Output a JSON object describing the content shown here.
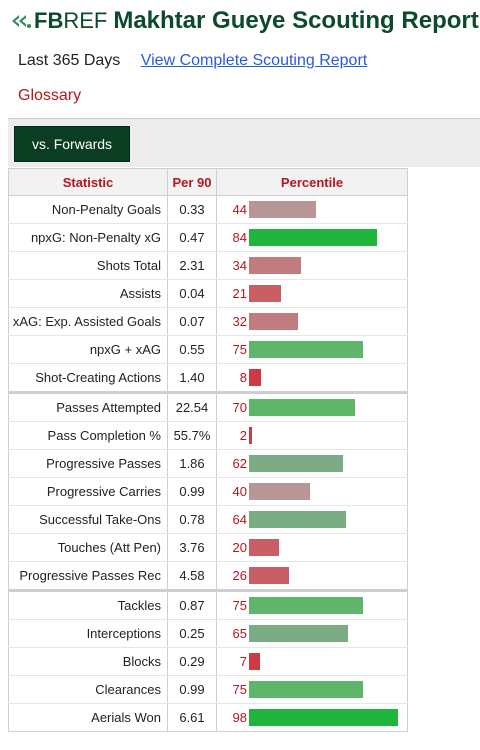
{
  "header": {
    "logo_fb": "FB",
    "logo_ref": "REF",
    "title": "Makhtar Gueye Scouting Report"
  },
  "period": {
    "label": "Last 365 Days",
    "link": "View Complete Scouting Report"
  },
  "glossary": "Glossary",
  "tab": {
    "label": "vs. Forwards"
  },
  "table": {
    "headers": {
      "statistic": "Statistic",
      "per90": "Per 90",
      "percentile": "Percentile"
    },
    "rows": [
      {
        "stat": "Non-Penalty Goals",
        "per90": "0.33",
        "percentile": "44",
        "group_start": false
      },
      {
        "stat": "npxG: Non-Penalty xG",
        "per90": "0.47",
        "percentile": "84",
        "group_start": false
      },
      {
        "stat": "Shots Total",
        "per90": "2.31",
        "percentile": "34",
        "group_start": false
      },
      {
        "stat": "Assists",
        "per90": "0.04",
        "percentile": "21",
        "group_start": false
      },
      {
        "stat": "xAG: Exp. Assisted Goals",
        "per90": "0.07",
        "percentile": "32",
        "group_start": false
      },
      {
        "stat": "npxG + xAG",
        "per90": "0.55",
        "percentile": "75",
        "group_start": false
      },
      {
        "stat": "Shot-Creating Actions",
        "per90": "1.40",
        "percentile": "8",
        "group_start": false
      },
      {
        "stat": "Passes Attempted",
        "per90": "22.54",
        "percentile": "70",
        "group_start": true
      },
      {
        "stat": "Pass Completion %",
        "per90": "55.7%",
        "percentile": "2",
        "group_start": false
      },
      {
        "stat": "Progressive Passes",
        "per90": "1.86",
        "percentile": "62",
        "group_start": false
      },
      {
        "stat": "Progressive Carries",
        "per90": "0.99",
        "percentile": "40",
        "group_start": false
      },
      {
        "stat": "Successful Take-Ons",
        "per90": "0.78",
        "percentile": "64",
        "group_start": false
      },
      {
        "stat": "Touches (Att Pen)",
        "per90": "3.76",
        "percentile": "20",
        "group_start": false
      },
      {
        "stat": "Progressive Passes Rec",
        "per90": "4.58",
        "percentile": "26",
        "group_start": false
      },
      {
        "stat": "Tackles",
        "per90": "0.87",
        "percentile": "75",
        "group_start": true
      },
      {
        "stat": "Interceptions",
        "per90": "0.25",
        "percentile": "65",
        "group_start": false
      },
      {
        "stat": "Blocks",
        "per90": "0.29",
        "percentile": "7",
        "group_start": false
      },
      {
        "stat": "Clearances",
        "per90": "0.99",
        "percentile": "75",
        "group_start": false
      },
      {
        "stat": "Aerials Won",
        "per90": "6.61",
        "percentile": "98",
        "group_start": false
      }
    ]
  },
  "colors": {
    "title_green": "#0b4a2a",
    "link_blue": "#2a5bd7",
    "accent_red": "#b3171d"
  }
}
